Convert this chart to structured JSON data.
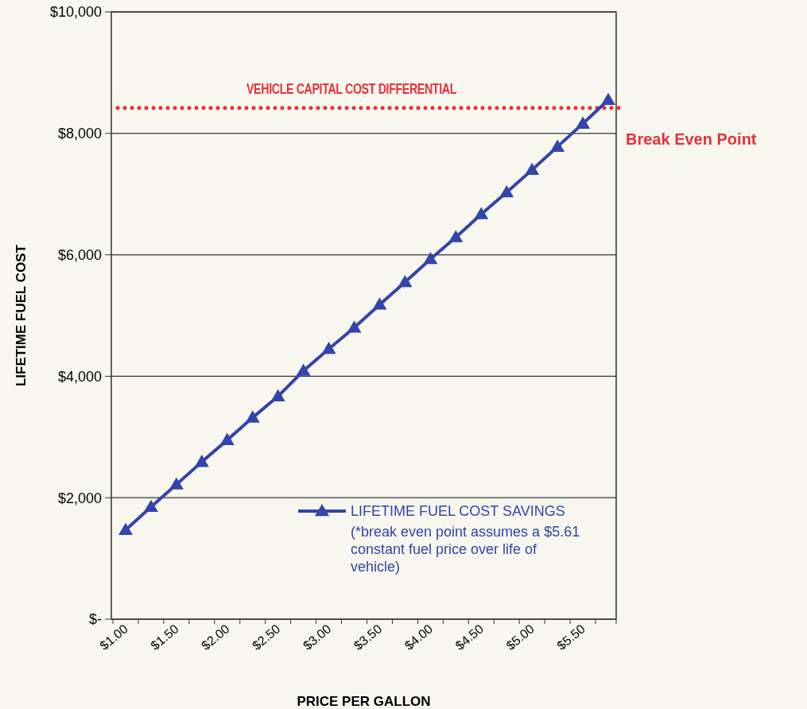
{
  "chart_data": {
    "type": "line",
    "xlabel": "PRICE PER GALLON",
    "ylabel": "LIFETIME FUEL COST",
    "categories": [
      "$1.00",
      null,
      "$1.50",
      null,
      "$2.00",
      null,
      "$2.50",
      null,
      "$3.00",
      null,
      "$3.50",
      null,
      "$4.00",
      null,
      "$4.50",
      null,
      "$5.00",
      null,
      "$5.50",
      null
    ],
    "series": [
      {
        "name": "LIFETIME FUEL COST SAVINGS",
        "color": "#3344aa",
        "values": [
          1470,
          1850,
          2220,
          2590,
          2950,
          3320,
          3670,
          4090,
          4450,
          4800,
          5180,
          5550,
          5930,
          6290,
          6670,
          7030,
          7400,
          7780,
          8160,
          8550
        ]
      }
    ],
    "ylim": [
      0,
      10000
    ],
    "yticks": [
      {
        "value": 0,
        "label": "$-"
      },
      {
        "value": 2000,
        "label": "$2,000"
      },
      {
        "value": 4000,
        "label": "$4,000"
      },
      {
        "value": 6000,
        "label": "$6,000"
      },
      {
        "value": 8000,
        "label": "$8,000"
      },
      {
        "value": 10000,
        "label": "$10,000"
      }
    ],
    "grid": "y",
    "legend": "bottom right",
    "marker": "triangle",
    "line_style": "solid",
    "ref_lines": [
      {
        "axis": "y",
        "value": 8420,
        "label": "VEHICLE CAPITAL COST DIFFERENTIAL",
        "color": "#e8313a",
        "line_style": "dotted"
      }
    ],
    "annotations": [
      "Break Even Point",
      "(*break even point assumes a $5.61 constant fuel price over life of vehicle)"
    ]
  }
}
